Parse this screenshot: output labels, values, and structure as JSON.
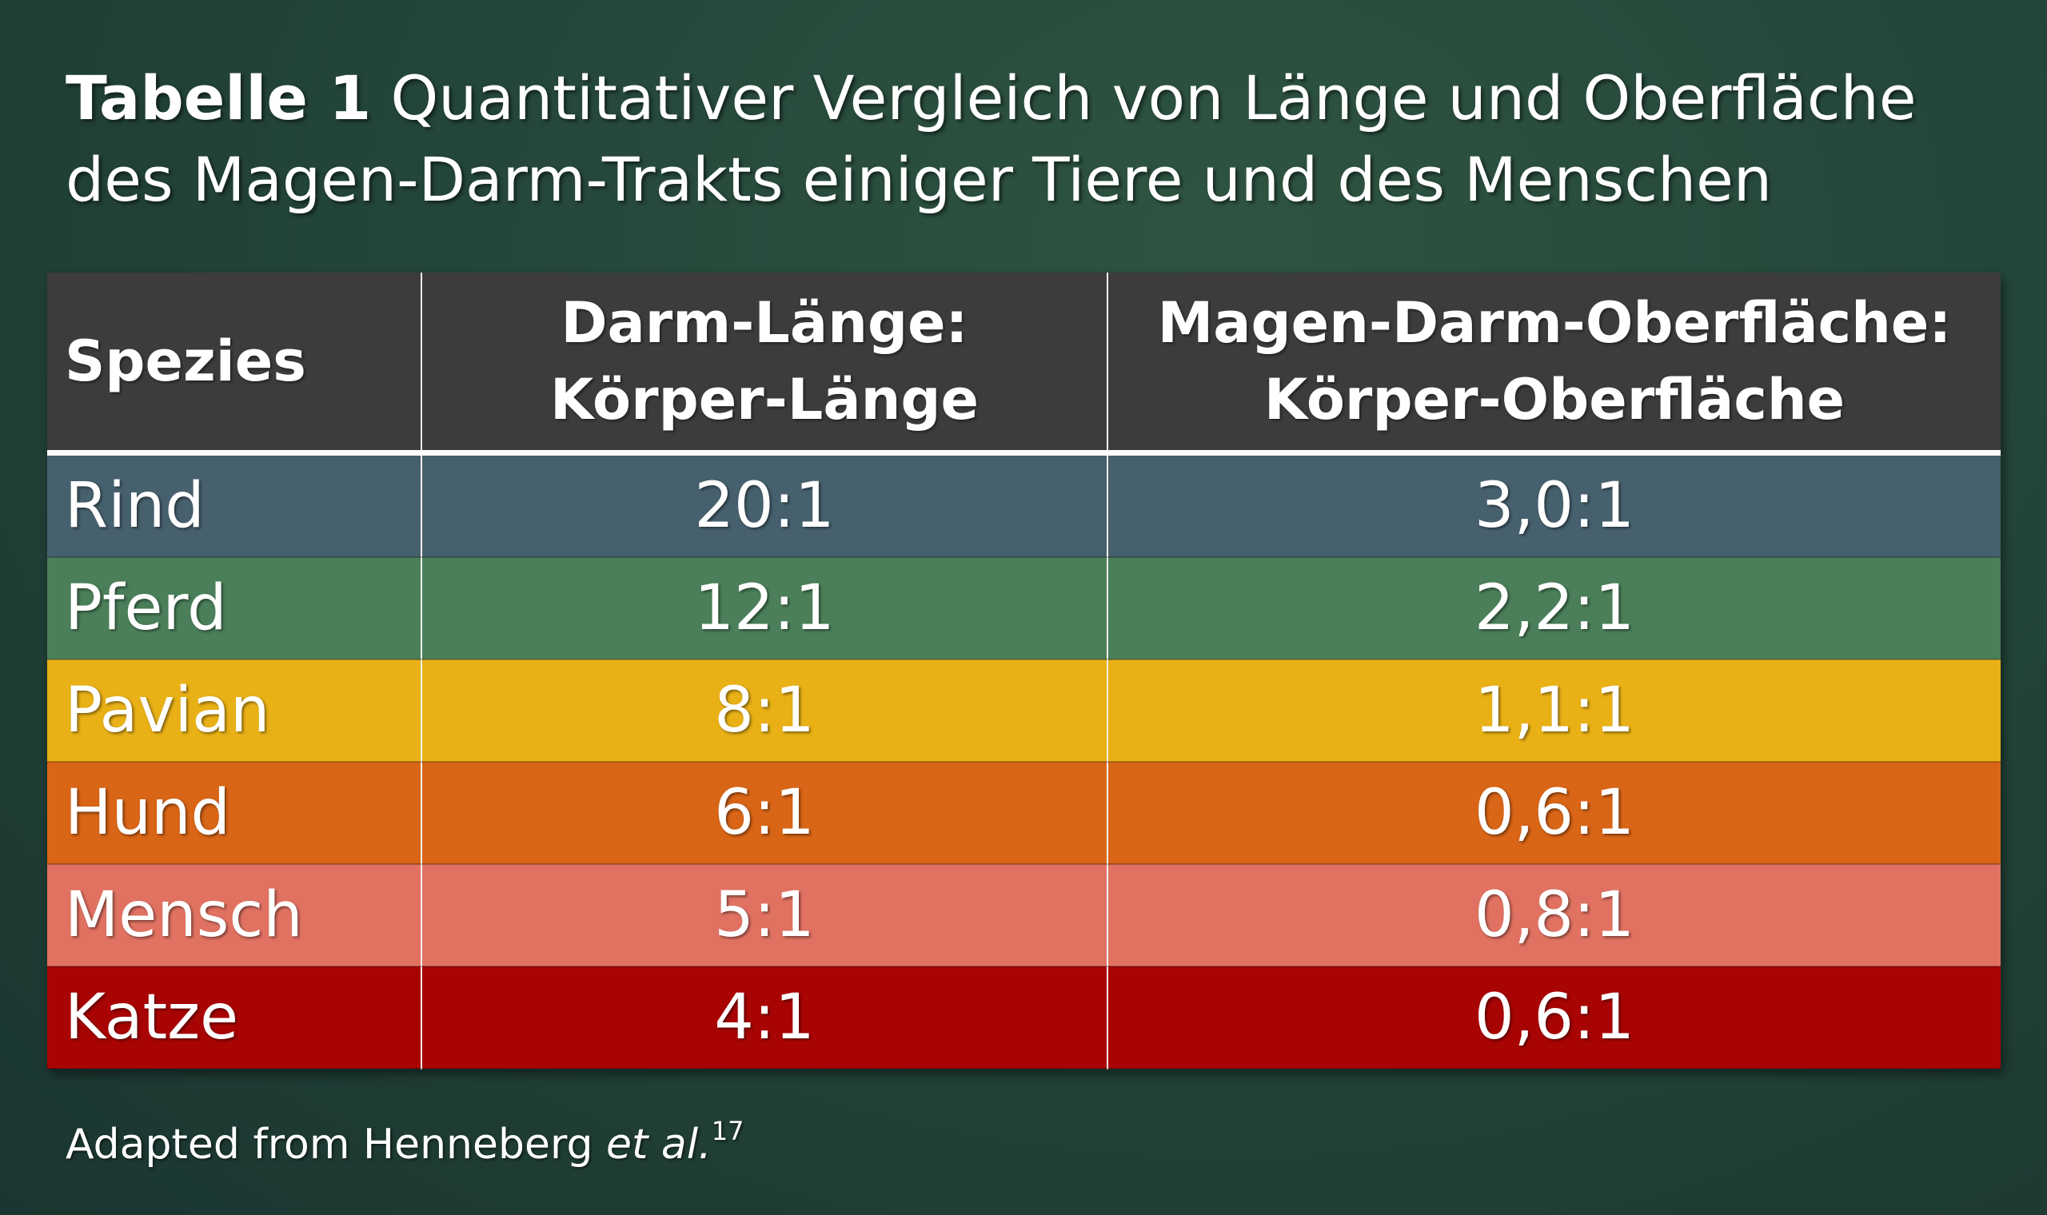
{
  "title": {
    "label": "Tabelle 1",
    "text": "Quantitativer Vergleich von Länge und Oberfläche des Magen-Darm-Trakts einiger Tiere und des Menschen"
  },
  "table": {
    "headers": [
      {
        "line1": "Spezies",
        "line2": ""
      },
      {
        "line1": "Darm-Länge:",
        "line2": "Körper-Länge"
      },
      {
        "line1": "Magen-Darm-Oberfläche:",
        "line2": "Körper-Oberfläche"
      }
    ],
    "rows": [
      {
        "species": "Rind",
        "length_ratio": "20:1",
        "surface_ratio": "3,0:1",
        "color": "#46606e"
      },
      {
        "species": "Pferd",
        "length_ratio": "12:1",
        "surface_ratio": "2,2:1",
        "color": "#4a7f5a"
      },
      {
        "species": "Pavian",
        "length_ratio": "8:1",
        "surface_ratio": "1,1:1",
        "color": "#e9b116"
      },
      {
        "species": "Hund",
        "length_ratio": "6:1",
        "surface_ratio": "0,6:1",
        "color": "#d96516"
      },
      {
        "species": "Mensch",
        "length_ratio": "5:1",
        "surface_ratio": "0,8:1",
        "color": "#e17262"
      },
      {
        "species": "Katze",
        "length_ratio": "4:1",
        "surface_ratio": "0,6:1",
        "color": "#a90404"
      }
    ],
    "header_color": "#3c3c3c"
  },
  "footer": {
    "prefix": "Adapted from Henneberg ",
    "italic": "et al.",
    "superscript": "17"
  }
}
